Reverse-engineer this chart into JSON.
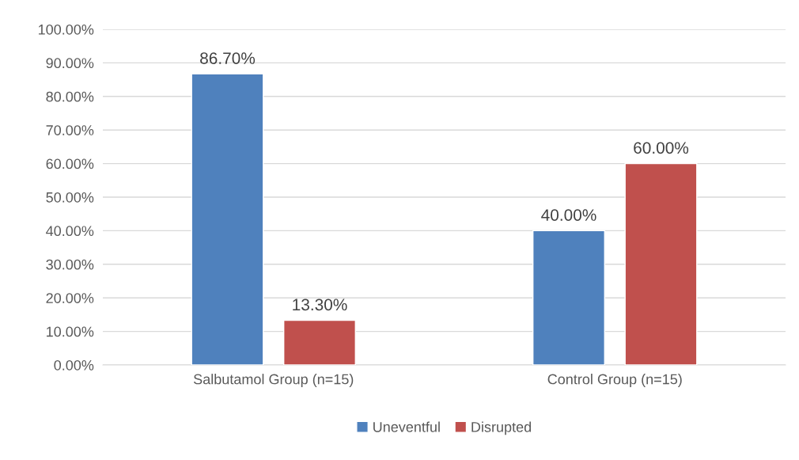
{
  "chart_data": {
    "type": "bar",
    "categories": [
      "Salbutamol Group (n=15)",
      "Control Group (n=15)"
    ],
    "series": [
      {
        "name": "Uneventful",
        "color": "#4f81bd",
        "values": [
          86.7,
          40.0
        ],
        "value_labels": [
          "86.70%",
          "40.00%"
        ]
      },
      {
        "name": "Disrupted",
        "color": "#c0504d",
        "values": [
          13.3,
          60.0
        ],
        "value_labels": [
          "13.30%",
          "60.00%"
        ]
      }
    ],
    "ylim": [
      0,
      100
    ],
    "yticks": [
      {
        "value": 0,
        "label": "0.00%"
      },
      {
        "value": 10,
        "label": "10.00%"
      },
      {
        "value": 20,
        "label": "20.00%"
      },
      {
        "value": 30,
        "label": "30.00%"
      },
      {
        "value": 40,
        "label": "40.00%"
      },
      {
        "value": 50,
        "label": "50.00%"
      },
      {
        "value": 60,
        "label": "60.00%"
      },
      {
        "value": 70,
        "label": "70.00%"
      },
      {
        "value": 80,
        "label": "80.00%"
      },
      {
        "value": 90,
        "label": "90.00%"
      },
      {
        "value": 100,
        "label": "100.00%"
      }
    ],
    "grid": "y",
    "legend": "bottom"
  }
}
